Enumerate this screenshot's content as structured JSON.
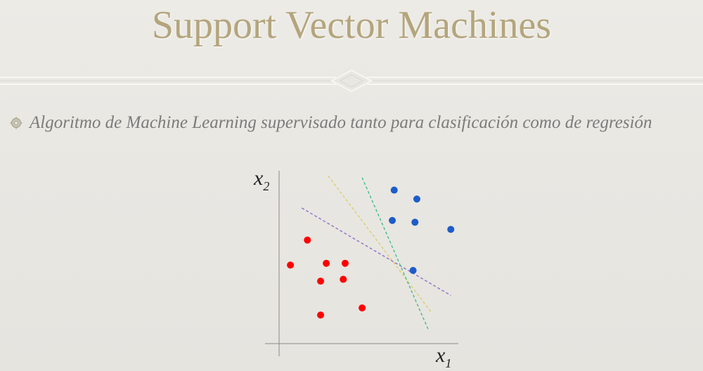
{
  "slide": {
    "title": "Support Vector Machines",
    "bullet": "Algoritmo de Machine Learning supervisado tanto para clasificación como de regresión"
  },
  "icons": {
    "bullet": "gear-bullet-icon",
    "divider": "diamond-ornament-icon"
  },
  "colors": {
    "title": "#b4a57c",
    "text": "#7b7b7b",
    "class_red": "#ff0000",
    "class_blue": "#1d5cc9",
    "line_purple": "#8e6fc9",
    "line_yellow": "#d9cf6a",
    "line_green": "#3fbf8a"
  },
  "chart_data": {
    "type": "scatter",
    "xlabel": "x",
    "xlabel_sub": "1",
    "ylabel": "x",
    "ylabel_sub": "2",
    "grid": false,
    "series": [
      {
        "color": "#ff0000",
        "points": [
          [
            1.5,
            5.8
          ],
          [
            0.6,
            4.4
          ],
          [
            2.5,
            4.5
          ],
          [
            3.5,
            4.5
          ],
          [
            2.2,
            3.5
          ],
          [
            3.4,
            3.6
          ],
          [
            2.2,
            1.6
          ],
          [
            4.4,
            2.0
          ]
        ]
      },
      {
        "color": "#1d5cc9",
        "points": [
          [
            6.1,
            8.6
          ],
          [
            7.3,
            8.1
          ],
          [
            6.0,
            6.9
          ],
          [
            7.2,
            6.8
          ],
          [
            9.1,
            6.4
          ],
          [
            7.1,
            4.1
          ]
        ]
      }
    ],
    "lines": [
      {
        "color": "#8e6fc9",
        "from": [
          1.2,
          7.6
        ],
        "to": [
          9.1,
          2.7
        ]
      },
      {
        "color": "#d9cf6a",
        "from": [
          2.6,
          9.4
        ],
        "to": [
          8.1,
          1.7
        ]
      },
      {
        "color": "#3fbf8a",
        "from": [
          4.4,
          9.3
        ],
        "to": [
          7.9,
          0.8
        ]
      }
    ],
    "xlim": [
      0,
      9.5
    ],
    "ylim": [
      0,
      10
    ]
  }
}
